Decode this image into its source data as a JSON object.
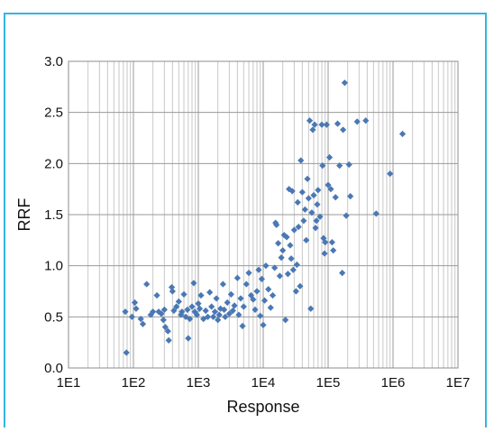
{
  "chart_data": {
    "type": "scatter",
    "title": "",
    "xlabel": "Response",
    "ylabel": "RRF",
    "x_scale": "log",
    "xlim": [
      10,
      10000000
    ],
    "ylim": [
      0,
      3
    ],
    "x_tick_labels": [
      "1E1",
      "1E2",
      "1E3",
      "1E4",
      "1E5",
      "1E6",
      "1E7"
    ],
    "y_tick_labels": [
      "0.0",
      "0.5",
      "1.0",
      "1.5",
      "2.0",
      "2.5",
      "3.0"
    ],
    "grid": true,
    "legend": "none",
    "marker": "diamond",
    "marker_color": "#4a78b4",
    "points": [
      [
        75,
        0.55
      ],
      [
        78,
        0.15
      ],
      [
        95,
        0.5
      ],
      [
        105,
        0.64
      ],
      [
        110,
        0.58
      ],
      [
        130,
        0.48
      ],
      [
        140,
        0.43
      ],
      [
        160,
        0.82
      ],
      [
        185,
        0.52
      ],
      [
        200,
        0.55
      ],
      [
        230,
        0.71
      ],
      [
        245,
        0.55
      ],
      [
        270,
        0.53
      ],
      [
        290,
        0.47
      ],
      [
        300,
        0.57
      ],
      [
        310,
        0.4
      ],
      [
        340,
        0.36
      ],
      [
        350,
        0.27
      ],
      [
        390,
        0.79
      ],
      [
        400,
        0.75
      ],
      [
        420,
        0.56
      ],
      [
        460,
        0.6
      ],
      [
        500,
        0.65
      ],
      [
        540,
        0.52
      ],
      [
        560,
        0.55
      ],
      [
        600,
        0.72
      ],
      [
        640,
        0.5
      ],
      [
        680,
        0.57
      ],
      [
        700,
        0.29
      ],
      [
        740,
        0.48
      ],
      [
        800,
        0.6
      ],
      [
        850,
        0.83
      ],
      [
        880,
        0.55
      ],
      [
        950,
        0.52
      ],
      [
        1000,
        0.63
      ],
      [
        1050,
        0.58
      ],
      [
        1100,
        0.71
      ],
      [
        1200,
        0.48
      ],
      [
        1300,
        0.56
      ],
      [
        1400,
        0.5
      ],
      [
        1500,
        0.74
      ],
      [
        1600,
        0.6
      ],
      [
        1700,
        0.5
      ],
      [
        1800,
        0.55
      ],
      [
        1900,
        0.68
      ],
      [
        2000,
        0.47
      ],
      [
        2100,
        0.52
      ],
      [
        2200,
        0.58
      ],
      [
        2400,
        0.82
      ],
      [
        2500,
        0.57
      ],
      [
        2600,
        0.5
      ],
      [
        2800,
        0.64
      ],
      [
        3000,
        0.53
      ],
      [
        3200,
        0.72
      ],
      [
        3400,
        0.56
      ],
      [
        3600,
        0.61
      ],
      [
        4000,
        0.88
      ],
      [
        4200,
        0.52
      ],
      [
        4500,
        0.68
      ],
      [
        4800,
        0.41
      ],
      [
        5000,
        0.6
      ],
      [
        5500,
        0.82
      ],
      [
        6000,
        0.93
      ],
      [
        6500,
        0.71
      ],
      [
        7000,
        0.67
      ],
      [
        7500,
        0.57
      ],
      [
        8000,
        0.75
      ],
      [
        8500,
        0.96
      ],
      [
        9000,
        0.51
      ],
      [
        9500,
        0.87
      ],
      [
        10000,
        0.42
      ],
      [
        10500,
        0.66
      ],
      [
        11000,
        1.0
      ],
      [
        12000,
        0.77
      ],
      [
        13000,
        0.59
      ],
      [
        14000,
        0.71
      ],
      [
        15000,
        0.98
      ],
      [
        15500,
        1.42
      ],
      [
        16000,
        1.4
      ],
      [
        17000,
        1.22
      ],
      [
        18000,
        0.9
      ],
      [
        19000,
        1.08
      ],
      [
        20000,
        1.15
      ],
      [
        21000,
        1.3
      ],
      [
        22000,
        0.47
      ],
      [
        23000,
        1.28
      ],
      [
        24000,
        0.92
      ],
      [
        25000,
        1.75
      ],
      [
        26000,
        1.2
      ],
      [
        27000,
        1.07
      ],
      [
        28000,
        1.73
      ],
      [
        29000,
        0.96
      ],
      [
        30000,
        1.35
      ],
      [
        32000,
        0.75
      ],
      [
        33000,
        1.01
      ],
      [
        34000,
        1.62
      ],
      [
        35000,
        1.38
      ],
      [
        37000,
        0.8
      ],
      [
        38000,
        2.03
      ],
      [
        40000,
        1.72
      ],
      [
        42000,
        1.44
      ],
      [
        44000,
        1.55
      ],
      [
        46000,
        1.25
      ],
      [
        48000,
        1.85
      ],
      [
        50000,
        1.66
      ],
      [
        52000,
        2.42
      ],
      [
        54000,
        0.58
      ],
      [
        56000,
        1.52
      ],
      [
        58000,
        2.33
      ],
      [
        60000,
        1.69
      ],
      [
        62000,
        2.38
      ],
      [
        64000,
        1.37
      ],
      [
        66000,
        1.44
      ],
      [
        68000,
        1.6
      ],
      [
        70000,
        1.74
      ],
      [
        75000,
        1.48
      ],
      [
        80000,
        2.38
      ],
      [
        82000,
        1.98
      ],
      [
        85000,
        1.27
      ],
      [
        88000,
        1.12
      ],
      [
        90000,
        1.23
      ],
      [
        95000,
        2.38
      ],
      [
        100000,
        1.79
      ],
      [
        105000,
        2.06
      ],
      [
        110000,
        1.75
      ],
      [
        115000,
        1.23
      ],
      [
        120000,
        1.15
      ],
      [
        130000,
        1.67
      ],
      [
        140000,
        2.39
      ],
      [
        150000,
        1.98
      ],
      [
        165000,
        0.93
      ],
      [
        170000,
        2.33
      ],
      [
        180000,
        2.79
      ],
      [
        190000,
        1.49
      ],
      [
        210000,
        1.99
      ],
      [
        220000,
        1.68
      ],
      [
        280000,
        2.41
      ],
      [
        380000,
        2.42
      ],
      [
        550000,
        1.51
      ],
      [
        900000,
        1.9
      ],
      [
        1400000,
        2.29
      ]
    ]
  }
}
